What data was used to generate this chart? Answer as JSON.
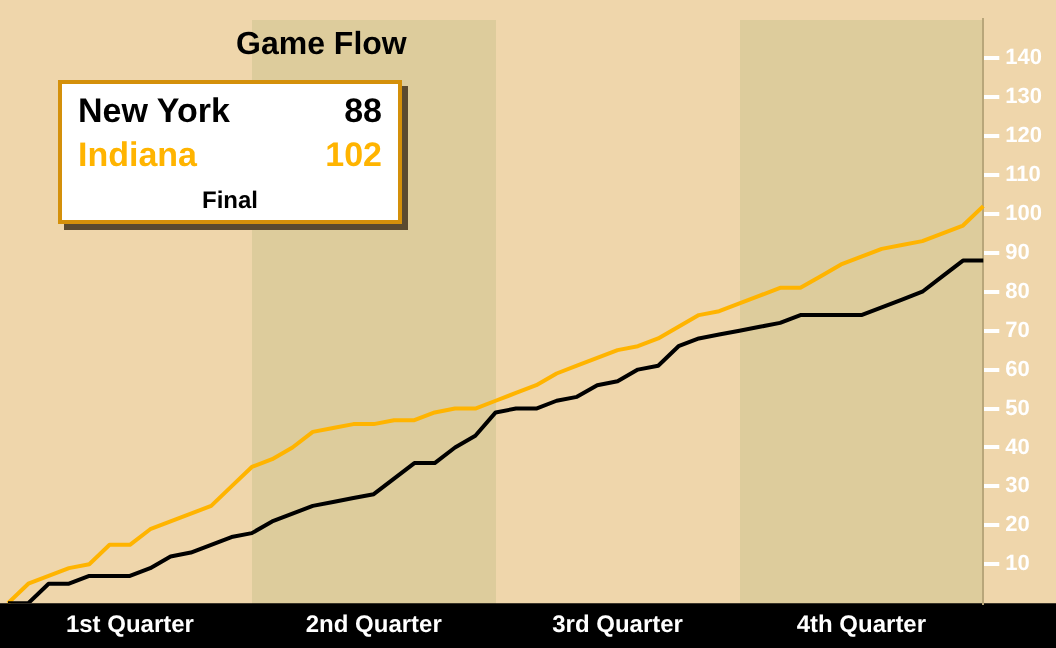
{
  "chart_data": {
    "type": "line",
    "title": "Game Flow",
    "annotations": [
      "88",
      "102",
      "Final"
    ],
    "categories": [
      null,
      null,
      null,
      null,
      null,
      null,
      "1st Quarter",
      null,
      null,
      null,
      null,
      null,
      null,
      null,
      null,
      null,
      null,
      null,
      "2nd Quarter",
      null,
      null,
      null,
      null,
      null,
      null,
      null,
      null,
      null,
      null,
      null,
      "3rd Quarter",
      null,
      null,
      null,
      null,
      null,
      null,
      null,
      null,
      null,
      null,
      null,
      "4th Quarter",
      null,
      null,
      null,
      null,
      null,
      null
    ],
    "ylim": [
      0,
      150
    ],
    "yticks": [
      10,
      20,
      30,
      40,
      50,
      60,
      70,
      80,
      90,
      100,
      110,
      120,
      130,
      140
    ],
    "legend": "top left",
    "grid": false,
    "marker": "none",
    "line_style": "solid",
    "series": [
      {
        "name": "New York",
        "color": "#000000",
        "values": [
          0,
          0,
          5,
          5,
          7,
          7,
          7,
          9,
          12,
          13,
          15,
          17,
          18,
          21,
          23,
          25,
          26,
          27,
          28,
          32,
          36,
          36,
          40,
          43,
          49,
          50,
          50,
          52,
          53,
          56,
          57,
          60,
          61,
          66,
          68,
          69,
          70,
          71,
          72,
          74,
          74,
          74,
          74,
          76,
          78,
          80,
          84,
          88,
          88
        ]
      },
      {
        "name": "Indiana",
        "color": "#ffb400",
        "values": [
          0,
          5,
          7,
          9,
          10,
          15,
          15,
          19,
          21,
          23,
          25,
          30,
          35,
          37,
          40,
          44,
          45,
          46,
          46,
          47,
          47,
          49,
          50,
          50,
          52,
          54,
          56,
          59,
          61,
          63,
          65,
          66,
          68,
          71,
          74,
          75,
          77,
          79,
          81,
          81,
          84,
          87,
          89,
          91,
          92,
          93,
          95,
          97,
          102
        ]
      }
    ]
  }
}
